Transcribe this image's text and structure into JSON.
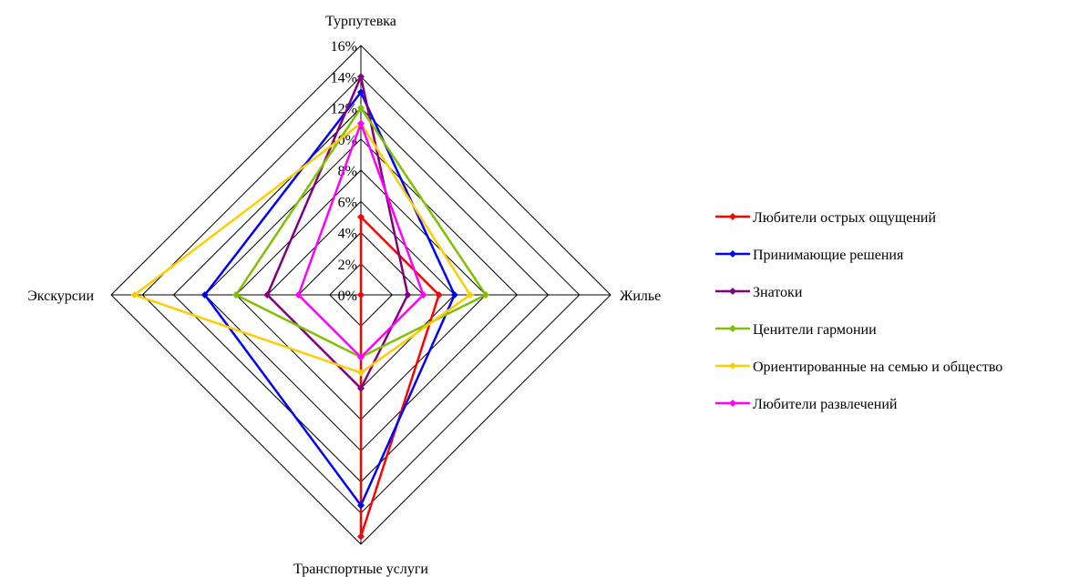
{
  "chart_data": {
    "type": "radar",
    "axes": [
      "Турпутевка",
      "Жилье",
      "Транспортные услуги",
      "Экскурсии"
    ],
    "ticks": [
      "0%",
      "2%",
      "4%",
      "6%",
      "8%",
      "10%",
      "12%",
      "14%",
      "16%"
    ],
    "tick_values": [
      0,
      2,
      4,
      6,
      8,
      10,
      12,
      14,
      16
    ],
    "rmax": 16,
    "grid": true,
    "legend_position": "right",
    "series": [
      {
        "name": "Любители острых ощущений",
        "color": "#ff0000",
        "values": [
          5,
          5,
          15.5,
          0
        ]
      },
      {
        "name": "Принимающие решения",
        "color": "#0000ff",
        "values": [
          13,
          6,
          13.5,
          10
        ]
      },
      {
        "name": "Знатоки",
        "color": "#800080",
        "values": [
          14,
          3,
          6,
          6
        ]
      },
      {
        "name": "Ценители гармонии",
        "color": "#80c000",
        "values": [
          12,
          8,
          4,
          8
        ]
      },
      {
        "name": "Ориентированные на семью и общество",
        "color": "#ffcc00",
        "values": [
          11,
          7,
          5,
          14.5
        ]
      },
      {
        "name": "Любители развлечений",
        "color": "#ff00ff",
        "values": [
          11,
          4,
          4,
          4
        ]
      }
    ]
  }
}
